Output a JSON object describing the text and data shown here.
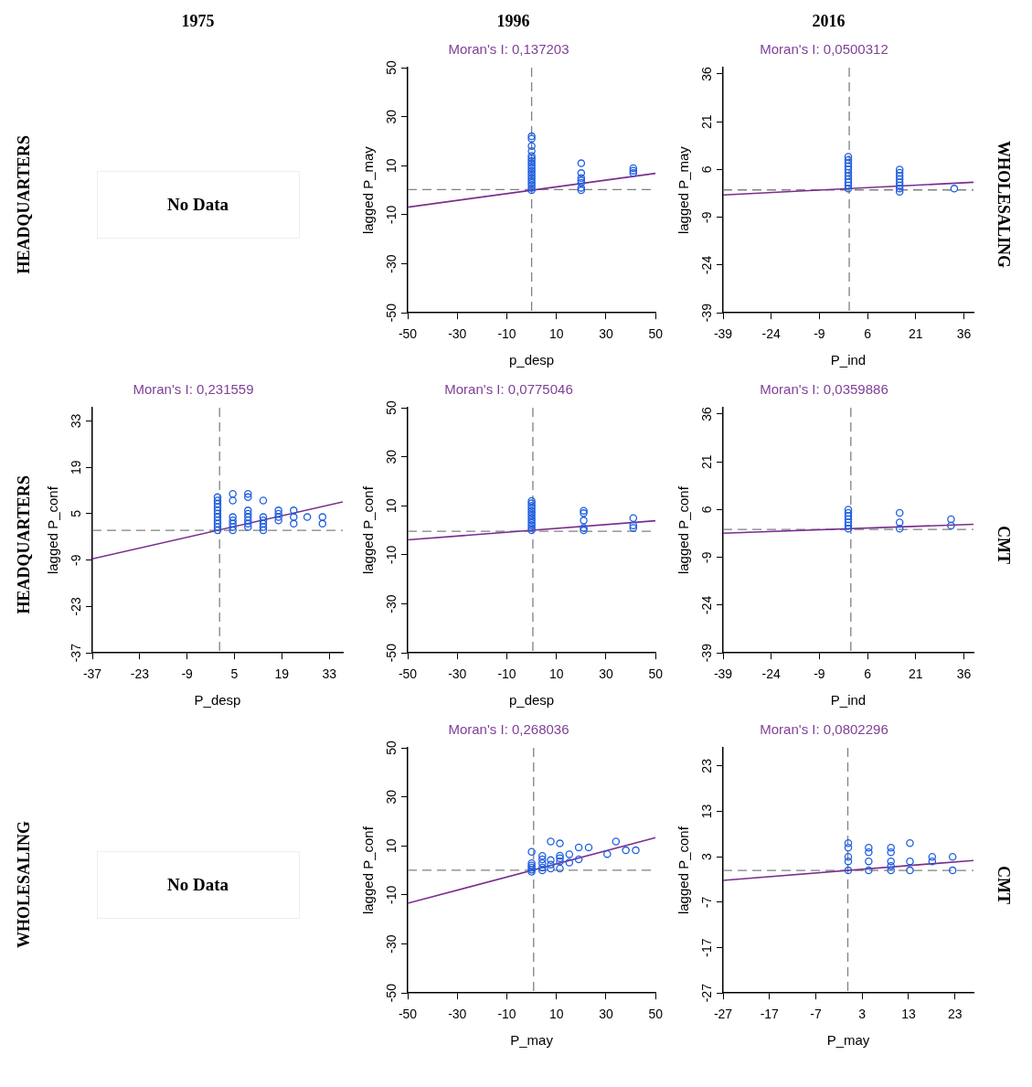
{
  "chart_data": [
    {
      "type": "other",
      "annotations": [
        "1975",
        "1996",
        "2016",
        "HEADQUARTERS",
        "HEADQUARTERS",
        "WHOLESALING",
        "WHOLESALING",
        "CMT",
        "CMT"
      ]
    },
    {
      "type": "other",
      "title": "No Data"
    },
    {
      "type": "scatter",
      "title": "Moran's I: 0,137203",
      "xlabel": "p_desp",
      "ylabel": "lagged P_may",
      "xlim": [
        -50,
        50
      ],
      "ylim": [
        -50,
        50
      ],
      "xticks": [
        -50,
        -30,
        -10,
        10,
        30,
        50
      ],
      "yticks": [
        -50,
        -30,
        -10,
        10,
        30,
        50
      ],
      "marker": "circle",
      "ref_lines": [
        {
          "axis": "x",
          "value": 0,
          "color": "#808080",
          "line_style": "dashed"
        },
        {
          "axis": "y",
          "value": 0.3,
          "color": "#808080",
          "line_style": "dashed"
        }
      ],
      "series": [
        {
          "color": "#1f5fe0",
          "x": [
            0,
            0,
            0,
            0,
            0,
            0,
            0,
            0,
            0,
            0,
            0,
            0,
            0,
            0,
            0,
            0,
            0,
            0,
            0,
            20,
            20,
            20,
            20,
            20,
            20,
            20,
            41,
            41,
            41
          ],
          "values": [
            0,
            1,
            2,
            3,
            4,
            5,
            6,
            7,
            8,
            9,
            10,
            11,
            12,
            13,
            14,
            16,
            18,
            21,
            22,
            0,
            1,
            3,
            4,
            5,
            7,
            11,
            7,
            8,
            9
          ]
        },
        {
          "type": "line",
          "marker": "none",
          "color": "#7b2d8e",
          "x": [
            -50,
            50
          ],
          "values": [
            -6.9,
            6.9
          ]
        }
      ]
    },
    {
      "type": "scatter",
      "title": "Moran's I: 0,0500312",
      "xlabel": "P_ind",
      "ylabel": "lagged P_may",
      "xlim": [
        -39,
        39
      ],
      "ylim": [
        -39,
        38
      ],
      "xticks": [
        -39,
        -24,
        -9,
        6,
        21,
        36
      ],
      "yticks": [
        -39,
        -24,
        -9,
        6,
        21,
        36
      ],
      "marker": "circle",
      "ref_lines": [
        {
          "axis": "x",
          "value": 0.3,
          "color": "#808080",
          "line_style": "dashed"
        },
        {
          "axis": "y",
          "value": -0.4,
          "color": "#808080",
          "line_style": "dashed"
        }
      ],
      "series": [
        {
          "color": "#1f5fe0",
          "x": [
            0,
            0,
            0,
            0,
            0,
            0,
            0,
            0,
            0,
            0,
            0,
            16,
            16,
            16,
            16,
            16,
            16,
            16,
            16,
            33
          ],
          "values": [
            0,
            1,
            2,
            3,
            4,
            5,
            6,
            7,
            8,
            9,
            10,
            -1,
            0,
            1,
            2,
            3,
            4,
            5,
            6,
            0
          ]
        },
        {
          "type": "line",
          "marker": "none",
          "color": "#7b2d8e",
          "x": [
            -39,
            39
          ],
          "values": [
            -2,
            2
          ]
        }
      ]
    },
    {
      "type": "scatter",
      "title": "Moran's I: 0,231559",
      "xlabel": "P_desp",
      "ylabel": "lagged P_conf",
      "xlim": [
        -37,
        37
      ],
      "ylim": [
        -37,
        37
      ],
      "xticks": [
        -37,
        -23,
        -9,
        5,
        19,
        33
      ],
      "yticks": [
        -37,
        -23,
        -9,
        5,
        19,
        33
      ],
      "marker": "circle",
      "ref_lines": [
        {
          "axis": "x",
          "value": 0.6,
          "color": "#808080",
          "line_style": "dashed"
        },
        {
          "axis": "y",
          "value": 0,
          "color": "#808080",
          "line_style": "dashed"
        }
      ],
      "series": [
        {
          "color": "#1f5fe0",
          "x": [
            0,
            0,
            0,
            0,
            0,
            0,
            0,
            0,
            0,
            0,
            0,
            4.5,
            4.5,
            4.5,
            4.5,
            4.5,
            4.5,
            4.5,
            9,
            9,
            9,
            9,
            9,
            9,
            9,
            9,
            13.5,
            13.5,
            13.5,
            13.5,
            13.5,
            13.5,
            18,
            18,
            18,
            18,
            22.5,
            22.5,
            22.5,
            26.5,
            31,
            31
          ],
          "values": [
            0,
            1,
            2,
            3,
            4,
            5,
            6,
            7,
            8,
            9,
            10,
            0,
            1,
            2,
            3,
            4,
            9,
            11,
            1,
            2,
            3,
            4,
            5,
            6,
            10,
            11,
            0,
            1,
            2,
            3,
            4,
            9,
            3,
            4,
            5,
            6,
            2,
            4,
            6,
            4,
            2,
            4
          ]
        },
        {
          "type": "line",
          "marker": "none",
          "color": "#7b2d8e",
          "x": [
            -37,
            37
          ],
          "values": [
            -8.6,
            8.6
          ]
        }
      ]
    },
    {
      "type": "scatter",
      "title": "Moran's I: 0,0775046",
      "xlabel": "p_desp",
      "ylabel": "lagged P_conf",
      "xlim": [
        -50,
        50
      ],
      "ylim": [
        -50,
        50
      ],
      "xticks": [
        -50,
        -30,
        -10,
        10,
        30,
        50
      ],
      "yticks": [
        -50,
        -30,
        -10,
        10,
        30,
        50
      ],
      "marker": "circle",
      "ref_lines": [
        {
          "axis": "x",
          "value": 0.5,
          "color": "#808080",
          "line_style": "dashed"
        },
        {
          "axis": "y",
          "value": -0.4,
          "color": "#808080",
          "line_style": "dashed"
        }
      ],
      "series": [
        {
          "color": "#1f5fe0",
          "x": [
            0,
            0,
            0,
            0,
            0,
            0,
            0,
            0,
            0,
            0,
            0,
            0,
            0,
            21,
            21,
            21,
            21,
            21,
            41,
            41,
            41
          ],
          "values": [
            0,
            1,
            2,
            3,
            4,
            5,
            6,
            7,
            8,
            9,
            10,
            11,
            12,
            0,
            1,
            4,
            7,
            8,
            1,
            2,
            5
          ]
        },
        {
          "type": "line",
          "marker": "none",
          "color": "#7b2d8e",
          "x": [
            -50,
            50
          ],
          "values": [
            -3.9,
            3.9
          ]
        }
      ]
    },
    {
      "type": "scatter",
      "title": "Moran's I: 0,0359886",
      "xlabel": "P_ind",
      "ylabel": "lagged P_conf",
      "xlim": [
        -39,
        39
      ],
      "ylim": [
        -39,
        38
      ],
      "xticks": [
        -39,
        -24,
        -9,
        6,
        21,
        36
      ],
      "yticks": [
        -39,
        -24,
        -9,
        6,
        21,
        36
      ],
      "marker": "circle",
      "ref_lines": [
        {
          "axis": "x",
          "value": 0.8,
          "color": "#808080",
          "line_style": "dashed"
        },
        {
          "axis": "y",
          "value": -0.2,
          "color": "#808080",
          "line_style": "dashed"
        }
      ],
      "series": [
        {
          "color": "#1f5fe0",
          "x": [
            0,
            0,
            0,
            0,
            0,
            0,
            0,
            16,
            16,
            16,
            32,
            32
          ],
          "values": [
            0,
            1,
            2,
            3,
            4,
            5,
            6,
            0,
            2,
            5,
            1,
            3
          ]
        },
        {
          "type": "line",
          "marker": "none",
          "color": "#7b2d8e",
          "x": [
            -39,
            39
          ],
          "values": [
            -1.4,
            1.4
          ]
        }
      ]
    },
    {
      "type": "other",
      "title": "No Data"
    },
    {
      "type": "scatter",
      "title": "Moran's I: 0,268036",
      "xlabel": "P_may",
      "ylabel": "lagged P_conf",
      "xlim": [
        -50,
        50
      ],
      "ylim": [
        -50,
        50
      ],
      "xticks": [
        -50,
        -30,
        -10,
        10,
        30,
        50
      ],
      "yticks": [
        -50,
        -30,
        -10,
        10,
        30,
        50
      ],
      "marker": "circle",
      "ref_lines": [
        {
          "axis": "x",
          "value": 0.8,
          "color": "#808080",
          "line_style": "dashed"
        },
        {
          "axis": "y",
          "value": 0.1,
          "color": "#808080",
          "line_style": "dashed"
        }
      ],
      "series": [
        {
          "color": "#1f5fe0",
          "x": [
            0,
            0,
            0,
            0,
            0,
            0,
            4.3,
            4.3,
            4.3,
            4.3,
            4.3,
            7.7,
            7.7,
            7.7,
            7.7,
            11.4,
            11.4,
            11.4,
            11.4,
            11.4,
            15.2,
            15.2,
            19,
            19,
            23,
            30.5,
            34,
            38,
            42
          ],
          "values": [
            7.6,
            2.9,
            2,
            1.2,
            0.3,
            -0.5,
            5.9,
            4.5,
            2.9,
            1.2,
            0,
            11.8,
            4.2,
            2.4,
            0.8,
            11,
            6,
            5,
            3.7,
            0.8,
            6.6,
            3.2,
            9.4,
            4.5,
            9.4,
            6.7,
            11.8,
            8.2,
            8.2
          ]
        },
        {
          "type": "line",
          "marker": "none",
          "color": "#7b2d8e",
          "x": [
            -50,
            50
          ],
          "values": [
            -13.4,
            13.4
          ]
        }
      ]
    },
    {
      "type": "scatter",
      "title": "Moran's I: 0,0802296",
      "xlabel": "P_may",
      "ylabel": "lagged P_conf",
      "xlim": [
        -27,
        27
      ],
      "ylim": [
        -27,
        27
      ],
      "xticks": [
        -27,
        -17,
        -7,
        3,
        13,
        23
      ],
      "yticks": [
        -27,
        -17,
        -7,
        3,
        13,
        23
      ],
      "marker": "circle",
      "ref_lines": [
        {
          "axis": "x",
          "value": -0.1,
          "color": "#808080",
          "line_style": "dashed"
        },
        {
          "axis": "y",
          "value": 0,
          "color": "#808080",
          "line_style": "dashed"
        }
      ],
      "series": [
        {
          "color": "#1f5fe0",
          "x": [
            0,
            0,
            0,
            0,
            0,
            4.4,
            4.4,
            4.4,
            4.4,
            9.2,
            9.2,
            9.2,
            9.2,
            9.2,
            13.3,
            13.3,
            13.3,
            18.1,
            18.1,
            22.5,
            22.5
          ],
          "values": [
            6,
            5,
            3,
            2,
            0,
            5,
            4,
            2,
            0,
            5,
            4,
            2,
            1,
            0,
            6,
            2,
            0,
            3,
            2,
            3,
            0
          ]
        },
        {
          "type": "line",
          "marker": "none",
          "color": "#7b2d8e",
          "x": [
            -27,
            27
          ],
          "values": [
            -2.2,
            2.2
          ]
        }
      ]
    }
  ]
}
